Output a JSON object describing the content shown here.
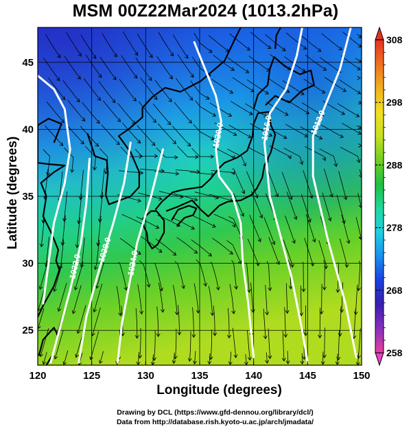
{
  "title": "MSM 00Z22Mar2024 (1013.2hPa)",
  "chart_data": {
    "type": "heatmap",
    "xlabel": "Longitude (degrees)",
    "ylabel": "Latitude  (degrees)",
    "xlim": [
      120,
      150
    ],
    "ylim": [
      22.4,
      47.6
    ],
    "x_ticks": [
      "120",
      "125",
      "130",
      "135",
      "140",
      "145",
      "150"
    ],
    "y_ticks": [
      "25",
      "30",
      "35",
      "40",
      "45"
    ],
    "colorbar": {
      "min": 258,
      "max": 308,
      "ticks": [
        "308",
        "298",
        "288",
        "278",
        "268",
        "258"
      ],
      "colors": [
        "#e8409a",
        "#8a2fc0",
        "#3a1fb0",
        "#1a3fe0",
        "#1a8ff0",
        "#20d0e0",
        "#20d8a0",
        "#20c040",
        "#70d020",
        "#c8e020",
        "#f0e020",
        "#f0b020",
        "#f07020",
        "#e83020"
      ]
    },
    "field": "temperature (K) with surface streamlines and isobars",
    "isobars": [
      {
        "label": "1020.0",
        "points": [
          [
            134.5,
            46.5
          ],
          [
            135.5,
            44.5
          ],
          [
            136.5,
            42.5
          ],
          [
            137.0,
            40.6
          ],
          [
            136.5,
            38.5
          ],
          [
            136.8,
            36.5
          ],
          [
            138.0,
            35.2
          ],
          [
            138.8,
            33.0
          ],
          [
            139.0,
            30.0
          ],
          [
            139.5,
            27.0
          ],
          [
            140.0,
            23.0
          ]
        ]
      },
      {
        "label": "1016.0",
        "points": [
          [
            144.5,
            47.6
          ],
          [
            144.0,
            45.5
          ],
          [
            143.0,
            43.0
          ],
          [
            141.5,
            41.2
          ],
          [
            141.0,
            39.0
          ],
          [
            141.5,
            35.0
          ],
          [
            142.5,
            32.0
          ],
          [
            143.5,
            29.0
          ],
          [
            144.5,
            25.0
          ],
          [
            145.0,
            22.6
          ]
        ]
      },
      {
        "label": "1012.0",
        "points": [
          [
            149.0,
            47.6
          ],
          [
            148.0,
            44.5
          ],
          [
            146.5,
            41.5
          ],
          [
            145.5,
            39.5
          ],
          [
            145.5,
            36.5
          ],
          [
            146.8,
            32.0
          ],
          [
            148.5,
            27.0
          ],
          [
            149.5,
            23.0
          ]
        ]
      },
      {
        "label": "1032.0",
        "points": [
          [
            124.8,
            37.8
          ],
          [
            124.5,
            34.5
          ],
          [
            124.0,
            31.5
          ],
          [
            123.0,
            28.0
          ],
          [
            122.0,
            25.0
          ],
          [
            121.2,
            22.6
          ]
        ]
      },
      {
        "label": "1028.0",
        "points": [
          [
            128.6,
            39.0
          ],
          [
            128.0,
            36.0
          ],
          [
            127.0,
            33.0
          ],
          [
            125.5,
            29.0
          ],
          [
            124.5,
            26.0
          ],
          [
            123.8,
            22.6
          ]
        ]
      },
      {
        "label": "1024.0",
        "points": [
          [
            131.6,
            38.5
          ],
          [
            130.5,
            35.0
          ],
          [
            129.2,
            31.5
          ],
          [
            128.5,
            28.5
          ],
          [
            127.8,
            25.5
          ],
          [
            127.4,
            22.6
          ]
        ]
      },
      {
        "label": "",
        "points": [
          [
            120.0,
            44.0
          ],
          [
            121.5,
            43.0
          ],
          [
            122.5,
            41.5
          ],
          [
            123.0,
            38.5
          ],
          [
            122.5,
            36.0
          ],
          [
            121.5,
            33.0
          ],
          [
            121.0,
            30.0
          ],
          [
            120.5,
            27.0
          ]
        ]
      }
    ],
    "grid": true
  }
}
